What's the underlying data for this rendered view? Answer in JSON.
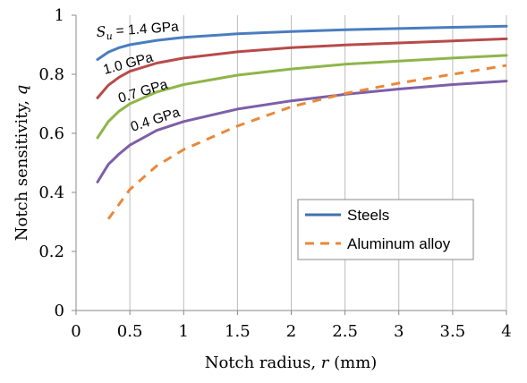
{
  "chart_data": {
    "type": "line",
    "xlabel_prefix": "Notch radius, ",
    "xlabel_var": "r",
    "xlabel_suffix": " (mm)",
    "ylabel_prefix": "Notch sensitivity, ",
    "ylabel_var": "q",
    "xlim": [
      0,
      4
    ],
    "ylim": [
      0,
      1
    ],
    "x_ticks": [
      "0",
      "0.5",
      "1",
      "1.5",
      "2",
      "2.5",
      "3",
      "3.5",
      "4"
    ],
    "y_ticks": [
      "0",
      "0.2",
      "0.4",
      "0.6",
      "0.8",
      "1"
    ],
    "grid": "vertical",
    "legend_position": "bottom-right",
    "legend": [
      {
        "label": "Steels",
        "color": "#3f6faf",
        "style": "solid"
      },
      {
        "label": "Aluminum alloy",
        "color": "#e8883a",
        "style": "dashed"
      }
    ],
    "series": [
      {
        "label": "1.4 GPa",
        "color": "#4a7dbf",
        "style": "solid",
        "x": [
          0.2,
          0.3,
          0.4,
          0.5,
          0.75,
          1.0,
          1.5,
          2.0,
          2.5,
          3.0,
          3.5,
          4.0
        ],
        "y": [
          0.85,
          0.875,
          0.89,
          0.9,
          0.915,
          0.925,
          0.937,
          0.945,
          0.951,
          0.955,
          0.959,
          0.963
        ]
      },
      {
        "label": "1.0 GPa",
        "color": "#b84a4a",
        "style": "solid",
        "x": [
          0.2,
          0.3,
          0.4,
          0.5,
          0.75,
          1.0,
          1.5,
          2.0,
          2.5,
          3.0,
          3.5,
          4.0
        ],
        "y": [
          0.72,
          0.763,
          0.79,
          0.81,
          0.838,
          0.855,
          0.876,
          0.89,
          0.899,
          0.906,
          0.913,
          0.92
        ]
      },
      {
        "label": "0.7 GPa",
        "color": "#8fb54a",
        "style": "solid",
        "x": [
          0.2,
          0.3,
          0.4,
          0.5,
          0.75,
          1.0,
          1.5,
          2.0,
          2.5,
          3.0,
          3.5,
          4.0
        ],
        "y": [
          0.585,
          0.64,
          0.675,
          0.7,
          0.74,
          0.765,
          0.797,
          0.818,
          0.834,
          0.845,
          0.855,
          0.864
        ]
      },
      {
        "label": "0.4 GPa",
        "color": "#7d5fa8",
        "style": "solid",
        "x": [
          0.2,
          0.3,
          0.4,
          0.5,
          0.75,
          1.0,
          1.5,
          2.0,
          2.5,
          3.0,
          3.5,
          4.0
        ],
        "y": [
          0.435,
          0.495,
          0.53,
          0.56,
          0.61,
          0.64,
          0.682,
          0.71,
          0.732,
          0.75,
          0.765,
          0.777
        ]
      },
      {
        "label": "Aluminum alloy",
        "color": "#e8883a",
        "style": "dashed",
        "x": [
          0.3,
          0.4,
          0.5,
          0.75,
          1.0,
          1.5,
          2.0,
          2.5,
          3.0,
          3.5,
          4.0
        ],
        "y": [
          0.31,
          0.36,
          0.41,
          0.49,
          0.545,
          0.625,
          0.69,
          0.735,
          0.77,
          0.8,
          0.83
        ]
      }
    ],
    "annotations": [
      {
        "type": "su",
        "var": "S",
        "sub": "u",
        "text": " = 1.4 GPa"
      },
      {
        "type": "plain",
        "text": "1.0 GPa"
      },
      {
        "type": "plain",
        "text": "0.7 GPa"
      },
      {
        "type": "plain",
        "text": "0.4 GPa"
      }
    ]
  }
}
